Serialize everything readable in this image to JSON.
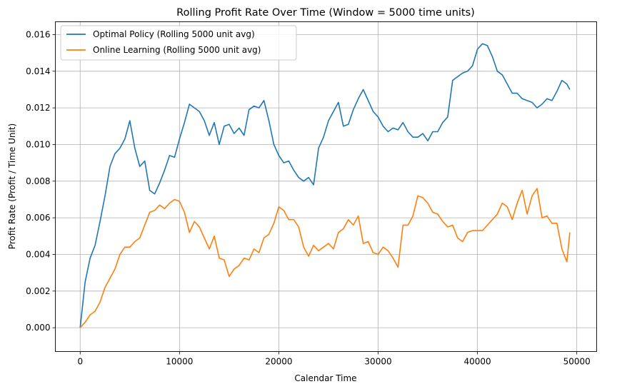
{
  "chart_data": {
    "type": "line",
    "title": "Rolling Profit Rate Over Time (Window = 5000 time units)",
    "xlabel": "Calendar Time",
    "ylabel": "Profit Rate (Profit / Time Unit)",
    "xlim": [
      -2500,
      52000
    ],
    "ylim": [
      -0.0013,
      0.0167
    ],
    "xticks": [
      0,
      10000,
      20000,
      30000,
      40000,
      50000
    ],
    "xtick_labels": [
      "0",
      "10000",
      "20000",
      "30000",
      "40000",
      "50000"
    ],
    "yticks": [
      0.0,
      0.002,
      0.004,
      0.006,
      0.008,
      0.01,
      0.012,
      0.014,
      0.016
    ],
    "ytick_labels": [
      "0.000",
      "0.002",
      "0.004",
      "0.006",
      "0.008",
      "0.010",
      "0.012",
      "0.014",
      "0.016"
    ],
    "grid": true,
    "legend_position": "top-left",
    "series": [
      {
        "name": "Optimal Policy (Rolling 5000 unit avg)",
        "color": "#1f77b4",
        "x": [
          0,
          500,
          1000,
          1500,
          2000,
          2500,
          3000,
          3500,
          4000,
          4500,
          5000,
          5500,
          6000,
          6500,
          7000,
          7500,
          8000,
          8500,
          9000,
          9500,
          10000,
          10500,
          11000,
          11500,
          12000,
          12500,
          13000,
          13500,
          14000,
          14500,
          15000,
          15500,
          16000,
          16500,
          17000,
          17500,
          18000,
          18500,
          19000,
          19500,
          20000,
          20500,
          21000,
          21500,
          22000,
          22500,
          23000,
          23500,
          24000,
          24500,
          25000,
          25500,
          26000,
          26500,
          27000,
          27500,
          28000,
          28500,
          29000,
          29500,
          30000,
          30500,
          31000,
          31500,
          32000,
          32500,
          33000,
          33500,
          34000,
          34500,
          35000,
          35500,
          36000,
          36500,
          37000,
          37500,
          38000,
          38500,
          39000,
          39500,
          40000,
          40500,
          41000,
          41500,
          42000,
          42500,
          43000,
          43500,
          44000,
          44500,
          45000,
          45500,
          46000,
          46500,
          47000,
          47500,
          48000,
          48500,
          49000,
          49300
        ],
        "y": [
          0.0,
          0.0025,
          0.0038,
          0.0045,
          0.0058,
          0.0072,
          0.0088,
          0.0095,
          0.0098,
          0.0103,
          0.0113,
          0.0098,
          0.0088,
          0.0091,
          0.0075,
          0.0073,
          0.0079,
          0.0086,
          0.0094,
          0.0093,
          0.0103,
          0.0112,
          0.0122,
          0.012,
          0.0118,
          0.0113,
          0.0105,
          0.0112,
          0.01,
          0.011,
          0.0111,
          0.0106,
          0.0109,
          0.0105,
          0.0119,
          0.0121,
          0.012,
          0.0124,
          0.0113,
          0.01,
          0.0094,
          0.009,
          0.0091,
          0.0086,
          0.0082,
          0.008,
          0.0082,
          0.0078,
          0.0098,
          0.0104,
          0.0113,
          0.0118,
          0.0123,
          0.011,
          0.0111,
          0.0119,
          0.0125,
          0.013,
          0.0124,
          0.0118,
          0.0115,
          0.011,
          0.0107,
          0.0109,
          0.0108,
          0.0112,
          0.0107,
          0.0104,
          0.0104,
          0.0106,
          0.0102,
          0.0107,
          0.0107,
          0.0112,
          0.0115,
          0.0135,
          0.0137,
          0.0139,
          0.014,
          0.0143,
          0.0152,
          0.0155,
          0.0154,
          0.0148,
          0.014,
          0.0138,
          0.0133,
          0.0128,
          0.0128,
          0.0125,
          0.0124,
          0.0123,
          0.012,
          0.0122,
          0.0125,
          0.0124,
          0.0129,
          0.0135,
          0.0133,
          0.013
        ]
      },
      {
        "name": "Online Learning (Rolling 5000 unit avg)",
        "color": "#ff7f0e",
        "x": [
          0,
          500,
          1000,
          1500,
          2000,
          2500,
          3000,
          3500,
          4000,
          4500,
          5000,
          5500,
          6000,
          6500,
          7000,
          7500,
          8000,
          8500,
          9000,
          9500,
          10000,
          10500,
          11000,
          11500,
          12000,
          12500,
          13000,
          13500,
          14000,
          14500,
          15000,
          15500,
          16000,
          16500,
          17000,
          17500,
          18000,
          18500,
          19000,
          19500,
          20000,
          20500,
          21000,
          21500,
          22000,
          22500,
          23000,
          23500,
          24000,
          24500,
          25000,
          25500,
          26000,
          26500,
          27000,
          27500,
          28000,
          28500,
          29000,
          29500,
          30000,
          30500,
          31000,
          31500,
          32000,
          32500,
          33000,
          33500,
          34000,
          34500,
          35000,
          35500,
          36000,
          36500,
          37000,
          37500,
          38000,
          38500,
          39000,
          39500,
          40000,
          40500,
          41000,
          41500,
          42000,
          42500,
          43000,
          43500,
          44000,
          44500,
          45000,
          45500,
          46000,
          46500,
          47000,
          47500,
          48000,
          48500,
          49000,
          49300
        ],
        "y": [
          0.0,
          0.0003,
          0.0007,
          0.0009,
          0.0014,
          0.0022,
          0.0027,
          0.0032,
          0.004,
          0.0044,
          0.0044,
          0.0047,
          0.0049,
          0.0056,
          0.0063,
          0.0064,
          0.0067,
          0.0065,
          0.0068,
          0.007,
          0.0069,
          0.0063,
          0.0052,
          0.0058,
          0.0055,
          0.0049,
          0.0043,
          0.005,
          0.0038,
          0.0037,
          0.0028,
          0.0032,
          0.0034,
          0.0038,
          0.0037,
          0.0043,
          0.0041,
          0.0049,
          0.0051,
          0.0057,
          0.0066,
          0.0064,
          0.0059,
          0.0059,
          0.0055,
          0.0044,
          0.0039,
          0.0045,
          0.0042,
          0.0044,
          0.0046,
          0.0043,
          0.0052,
          0.0054,
          0.0059,
          0.0056,
          0.0061,
          0.0046,
          0.0047,
          0.0041,
          0.004,
          0.0044,
          0.0042,
          0.0038,
          0.0033,
          0.0056,
          0.0056,
          0.0061,
          0.0072,
          0.0071,
          0.0068,
          0.0063,
          0.0062,
          0.0058,
          0.0055,
          0.0056,
          0.0049,
          0.0047,
          0.0052,
          0.0053,
          0.0053,
          0.0053,
          0.0056,
          0.0059,
          0.0062,
          0.0068,
          0.0066,
          0.0059,
          0.0068,
          0.0075,
          0.0062,
          0.0072,
          0.0076,
          0.006,
          0.0061,
          0.0057,
          0.0057,
          0.0043,
          0.0036,
          0.0052
        ]
      }
    ]
  }
}
